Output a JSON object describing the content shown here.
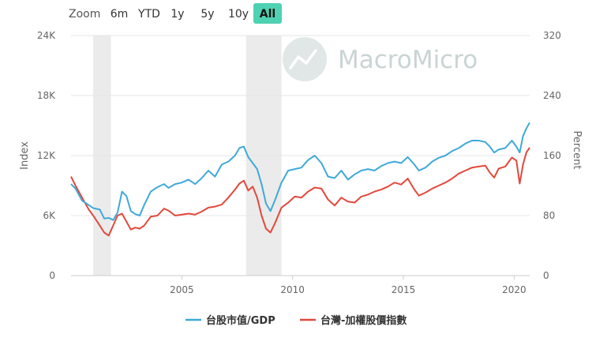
{
  "toolbar": {
    "zoom_label": "Zoom",
    "buttons": [
      {
        "label": "6m",
        "active": false
      },
      {
        "label": "YTD",
        "active": false
      },
      {
        "label": "1y",
        "active": false
      },
      {
        "label": "5y",
        "active": false
      },
      {
        "label": "10y",
        "active": false
      },
      {
        "label": "All",
        "active": true
      }
    ]
  },
  "watermark": {
    "text": "MacroMicro"
  },
  "colors": {
    "series_1": "#3fa9d8",
    "series_2": "#e2483c",
    "active_button": "#4fd1b3",
    "recession_band": "#ebebeb",
    "grid": "#e6e6e6",
    "axis_text": "#666666",
    "watermark": "#c9d4d4"
  },
  "chart_data": {
    "type": "line",
    "xlabel": "",
    "x_range": [
      2000.0,
      2020.7
    ],
    "x_ticks": [
      2005,
      2010,
      2015,
      2020
    ],
    "left_axis": {
      "label": "Index",
      "range": [
        0,
        24000
      ],
      "ticks": [
        0,
        6000,
        12000,
        18000,
        24000
      ],
      "tick_labels": [
        "0",
        "6K",
        "12K",
        "18K",
        "24K"
      ]
    },
    "right_axis": {
      "label": "Percent",
      "range": [
        0,
        320
      ],
      "ticks": [
        0,
        80,
        160,
        240,
        320
      ],
      "tick_labels": [
        "0",
        "80",
        "160",
        "240",
        "320"
      ]
    },
    "grid": true,
    "legend_position": "bottom-center",
    "shaded_periods": [
      [
        2001.0,
        2001.8
      ],
      [
        2007.9,
        2009.5
      ]
    ],
    "series": [
      {
        "name": "台股市值/GDP",
        "axis": "right",
        "x": [
          2000.0,
          2000.2,
          2000.5,
          2000.8,
          2001.0,
          2001.3,
          2001.5,
          2001.7,
          2001.9,
          2002.1,
          2002.3,
          2002.5,
          2002.7,
          2002.9,
          2003.1,
          2003.3,
          2003.6,
          2003.9,
          2004.2,
          2004.4,
          2004.7,
          2005.0,
          2005.3,
          2005.6,
          2005.9,
          2006.2,
          2006.5,
          2006.8,
          2007.1,
          2007.4,
          2007.6,
          2007.8,
          2008.0,
          2008.2,
          2008.4,
          2008.6,
          2008.8,
          2009.0,
          2009.2,
          2009.5,
          2009.8,
          2010.1,
          2010.4,
          2010.7,
          2011.0,
          2011.3,
          2011.6,
          2011.9,
          2012.2,
          2012.5,
          2012.8,
          2013.1,
          2013.4,
          2013.7,
          2014.0,
          2014.3,
          2014.6,
          2014.9,
          2015.2,
          2015.5,
          2015.7,
          2016.0,
          2016.3,
          2016.6,
          2016.9,
          2017.2,
          2017.5,
          2017.8,
          2018.1,
          2018.4,
          2018.7,
          2018.9,
          2019.1,
          2019.3,
          2019.6,
          2019.9,
          2020.1,
          2020.25,
          2020.4,
          2020.55,
          2020.7
        ],
        "values": [
          122,
          116,
          100,
          94,
          90,
          88,
          76,
          77,
          74,
          84,
          112,
          106,
          86,
          82,
          80,
          94,
          112,
          118,
          122,
          117,
          122,
          124,
          128,
          122,
          130,
          140,
          132,
          148,
          152,
          160,
          170,
          172,
          158,
          150,
          142,
          122,
          96,
          86,
          100,
          124,
          140,
          142,
          144,
          154,
          160,
          150,
          132,
          130,
          140,
          128,
          135,
          140,
          142,
          140,
          146,
          150,
          152,
          150,
          158,
          148,
          140,
          144,
          152,
          157,
          160,
          166,
          170,
          176,
          180,
          180,
          178,
          172,
          164,
          168,
          170,
          180,
          172,
          164,
          186,
          196,
          204
        ]
      },
      {
        "name": "台灣-加權股價指數",
        "axis": "left",
        "x": [
          2000.0,
          2000.2,
          2000.5,
          2000.8,
          2001.0,
          2001.3,
          2001.5,
          2001.7,
          2001.9,
          2002.1,
          2002.3,
          2002.5,
          2002.7,
          2002.9,
          2003.1,
          2003.3,
          2003.6,
          2003.9,
          2004.2,
          2004.4,
          2004.7,
          2005.0,
          2005.3,
          2005.6,
          2005.9,
          2006.2,
          2006.5,
          2006.8,
          2007.1,
          2007.4,
          2007.6,
          2007.8,
          2008.0,
          2008.2,
          2008.4,
          2008.6,
          2008.8,
          2009.0,
          2009.2,
          2009.5,
          2009.8,
          2010.1,
          2010.4,
          2010.7,
          2011.0,
          2011.3,
          2011.6,
          2011.9,
          2012.2,
          2012.5,
          2012.8,
          2013.1,
          2013.4,
          2013.7,
          2014.0,
          2014.3,
          2014.6,
          2014.9,
          2015.2,
          2015.5,
          2015.7,
          2016.0,
          2016.3,
          2016.6,
          2016.9,
          2017.2,
          2017.5,
          2017.8,
          2018.1,
          2018.4,
          2018.7,
          2018.9,
          2019.1,
          2019.3,
          2019.6,
          2019.9,
          2020.1,
          2020.25,
          2020.4,
          2020.55,
          2020.7
        ],
        "values": [
          9900,
          9000,
          7800,
          6600,
          6000,
          5000,
          4300,
          4000,
          5000,
          6000,
          6200,
          5400,
          4600,
          4800,
          4700,
          5000,
          5900,
          6000,
          6700,
          6500,
          6000,
          6100,
          6200,
          6100,
          6400,
          6800,
          6900,
          7100,
          7800,
          8600,
          9200,
          9500,
          8500,
          8900,
          7800,
          6000,
          4700,
          4300,
          5200,
          6800,
          7300,
          7900,
          7800,
          8400,
          8800,
          8700,
          7600,
          7000,
          7800,
          7400,
          7300,
          7900,
          8100,
          8400,
          8600,
          8900,
          9300,
          9100,
          9700,
          8600,
          8000,
          8300,
          8700,
          9000,
          9300,
          9700,
          10200,
          10500,
          10800,
          10900,
          11000,
          10300,
          9800,
          10700,
          10900,
          11800,
          11500,
          9200,
          11100,
          12300,
          12800
        ]
      }
    ]
  }
}
